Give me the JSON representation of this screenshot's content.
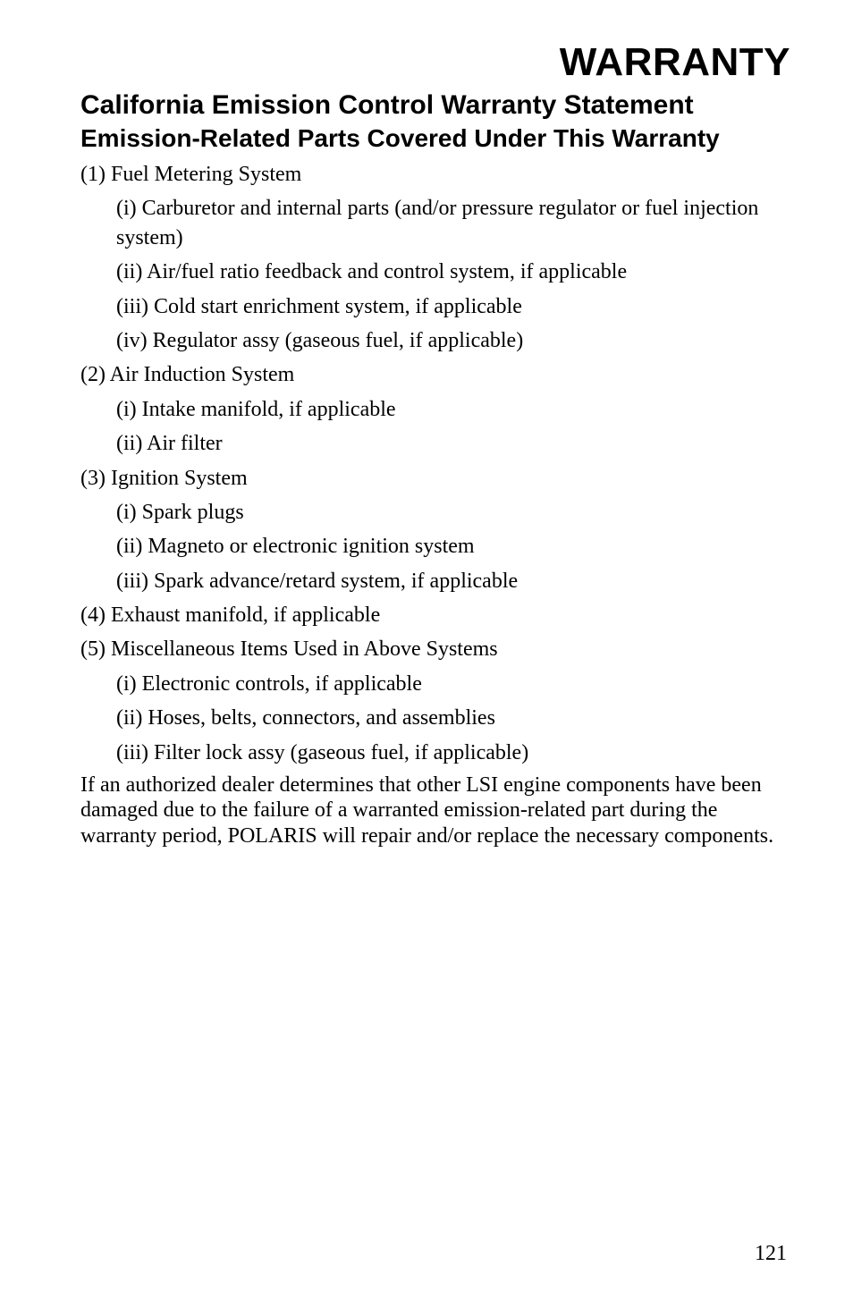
{
  "title": "WARRANTY",
  "section_head": "California Emission Control Warranty Statement",
  "subsection_head": "Emission-Related Parts Covered Under This Warranty",
  "list": [
    {
      "num": "(1)",
      "label": "Fuel Metering System",
      "subs": [
        "(i) Carburetor and internal parts (and/or pressure regulator or fuel injection system)",
        "(ii) Air/fuel ratio feedback and control system, if applicable",
        "(iii) Cold start enrichment system, if applicable",
        "(iv) Regulator assy (gaseous fuel, if applicable)"
      ]
    },
    {
      "num": "(2)",
      "label": "Air Induction System",
      "subs": [
        "(i) Intake manifold, if applicable",
        "(ii) Air filter"
      ]
    },
    {
      "num": "(3)",
      "label": "Ignition System",
      "subs": [
        "(i) Spark plugs",
        "(ii) Magneto or electronic ignition system",
        "(iii) Spark advance/retard system, if applicable"
      ]
    },
    {
      "num": "(4)",
      "label": "Exhaust manifold, if applicable",
      "subs": []
    },
    {
      "num": "(5)",
      "label": "Miscellaneous Items Used in Above Systems",
      "subs": [
        "(i) Electronic controls, if applicable",
        "(ii) Hoses, belts, connectors, and assemblies",
        "(iii) Filter lock assy (gaseous fuel, if applicable)"
      ]
    }
  ],
  "closing_para": "If an authorized dealer determines that other LSI engine components have been damaged due to the failure of a warranted emission-related part during the warranty period, POLARIS will repair and/or replace the necessary components.",
  "page_number": "121"
}
